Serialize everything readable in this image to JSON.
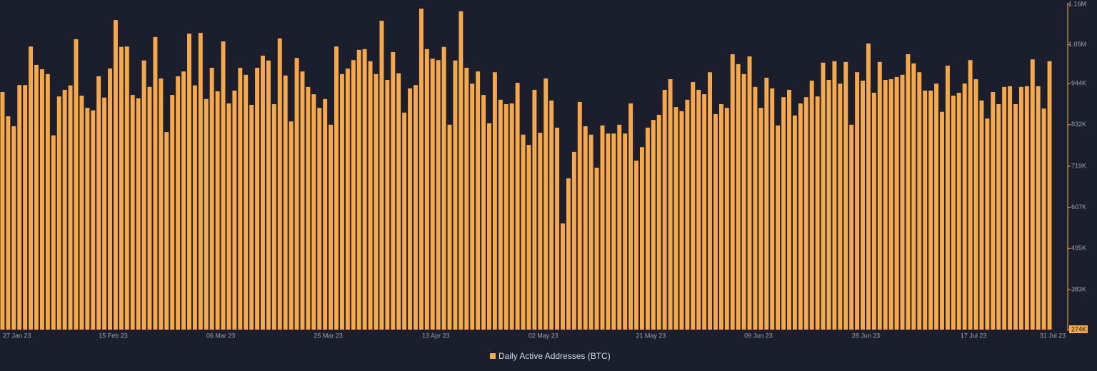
{
  "chart_data": {
    "type": "bar",
    "categories": [
      "27 Jan 23",
      null,
      null,
      null,
      null,
      null,
      null,
      null,
      null,
      null,
      null,
      null,
      null,
      null,
      null,
      null,
      null,
      null,
      null,
      "15 Feb 23",
      null,
      null,
      null,
      null,
      null,
      null,
      null,
      null,
      null,
      null,
      null,
      null,
      null,
      null,
      null,
      null,
      null,
      null,
      "06 Mar 23",
      null,
      null,
      null,
      null,
      null,
      null,
      null,
      null,
      null,
      null,
      null,
      null,
      null,
      null,
      null,
      null,
      null,
      null,
      "25 Mar 23",
      null,
      null,
      null,
      null,
      null,
      null,
      null,
      null,
      null,
      null,
      null,
      null,
      null,
      null,
      null,
      null,
      null,
      null,
      "13 Apr 23",
      null,
      null,
      null,
      null,
      null,
      null,
      null,
      null,
      null,
      null,
      null,
      null,
      null,
      null,
      null,
      null,
      null,
      null,
      "02 May 23",
      null,
      null,
      null,
      null,
      null,
      null,
      null,
      null,
      null,
      null,
      null,
      null,
      null,
      null,
      null,
      null,
      null,
      null,
      "21 May 23",
      null,
      null,
      null,
      null,
      null,
      null,
      null,
      null,
      null,
      null,
      null,
      null,
      null,
      null,
      null,
      null,
      null,
      null,
      "09 Jun 23",
      null,
      null,
      null,
      null,
      null,
      null,
      null,
      null,
      null,
      null,
      null,
      null,
      null,
      null,
      null,
      null,
      null,
      null,
      "28 Jun 23",
      null,
      null,
      null,
      null,
      null,
      null,
      null,
      null,
      null,
      null,
      null,
      null,
      null,
      null,
      null,
      null,
      null,
      null,
      "17 Jul 23",
      null,
      null,
      null,
      null,
      null,
      null,
      null,
      null,
      null,
      null,
      null,
      null,
      null,
      "31 Jul 23"
    ],
    "series": [
      {
        "name": "Daily Active Addresses (BTC)",
        "color": "#f7a948",
        "values": [
          921000,
          855000,
          828000,
          940000,
          940000,
          1045000,
          995000,
          983000,
          970000,
          803000,
          909000,
          927000,
          939000,
          1065000,
          911000,
          878000,
          871000,
          964000,
          906000,
          985000,
          1117000,
          1044000,
          1045000,
          913000,
          904000,
          1007000,
          935000,
          1071000,
          958000,
          812000,
          913000,
          964000,
          977000,
          1080000,
          939000,
          1082000,
          902000,
          987000,
          923000,
          1059000,
          890000,
          925000,
          987000,
          968000,
          886000,
          987000,
          1020000,
          1007000,
          888000,
          1067000,
          966000,
          841000,
          1014000,
          977000,
          935000,
          915000,
          878000,
          902000,
          832000,
          1045000,
          970000,
          985000,
          1008000,
          1036000,
          1038000,
          1005000,
          970000,
          1115000,
          954000,
          1030000,
          972000,
          865000,
          931000,
          940000,
          1148000,
          1038000,
          1012000,
          1008000,
          1044000,
          832000,
          1007000,
          1141000,
          987000,
          944000,
          977000,
          913000,
          836000,
          975000,
          900000,
          888000,
          890000,
          946000,
          805000,
          777000,
          927000,
          810000,
          958000,
          898000,
          824000,
          563000,
          686000,
          758000,
          894000,
          828000,
          805000,
          715000,
          830000,
          808000,
          808000,
          832000,
          808000,
          890000,
          734000,
          771000,
          824000,
          845000,
          859000,
          927000,
          956000,
          880000,
          869000,
          900000,
          948000,
          927000,
          915000,
          975000,
          861000,
          888000,
          878000,
          1024000,
          997000,
          970000,
          1018000,
          935000,
          878000,
          960000,
          931000,
          830000,
          907000,
          927000,
          857000,
          890000,
          907000,
          952000,
          909000,
          1001000,
          954000,
          1005000,
          944000,
          1003000,
          832000,
          975000,
          952000,
          1053000,
          919000,
          1003000,
          954000,
          956000,
          962000,
          968000,
          1024000,
          999000,
          975000,
          925000,
          925000,
          944000,
          867000,
          993000,
          911000,
          919000,
          944000,
          1008000,
          956000,
          898000,
          849000,
          921000,
          888000,
          935000,
          937000,
          888000,
          935000,
          937000,
          1010000,
          937000,
          876000,
          1005000
        ]
      }
    ],
    "ylim": [
      274000,
      1160000
    ],
    "yticks": [
      {
        "value": 274000,
        "label": "274K"
      },
      {
        "value": 383000,
        "label": "383K"
      },
      {
        "value": 495000,
        "label": "495K"
      },
      {
        "value": 607000,
        "label": "607K"
      },
      {
        "value": 719000,
        "label": "719K"
      },
      {
        "value": 832000,
        "label": "832K"
      },
      {
        "value": 944000,
        "label": "944K"
      },
      {
        "value": 1050000,
        "label": "1.05M"
      },
      {
        "value": 1160000,
        "label": "1.16M"
      }
    ]
  }
}
